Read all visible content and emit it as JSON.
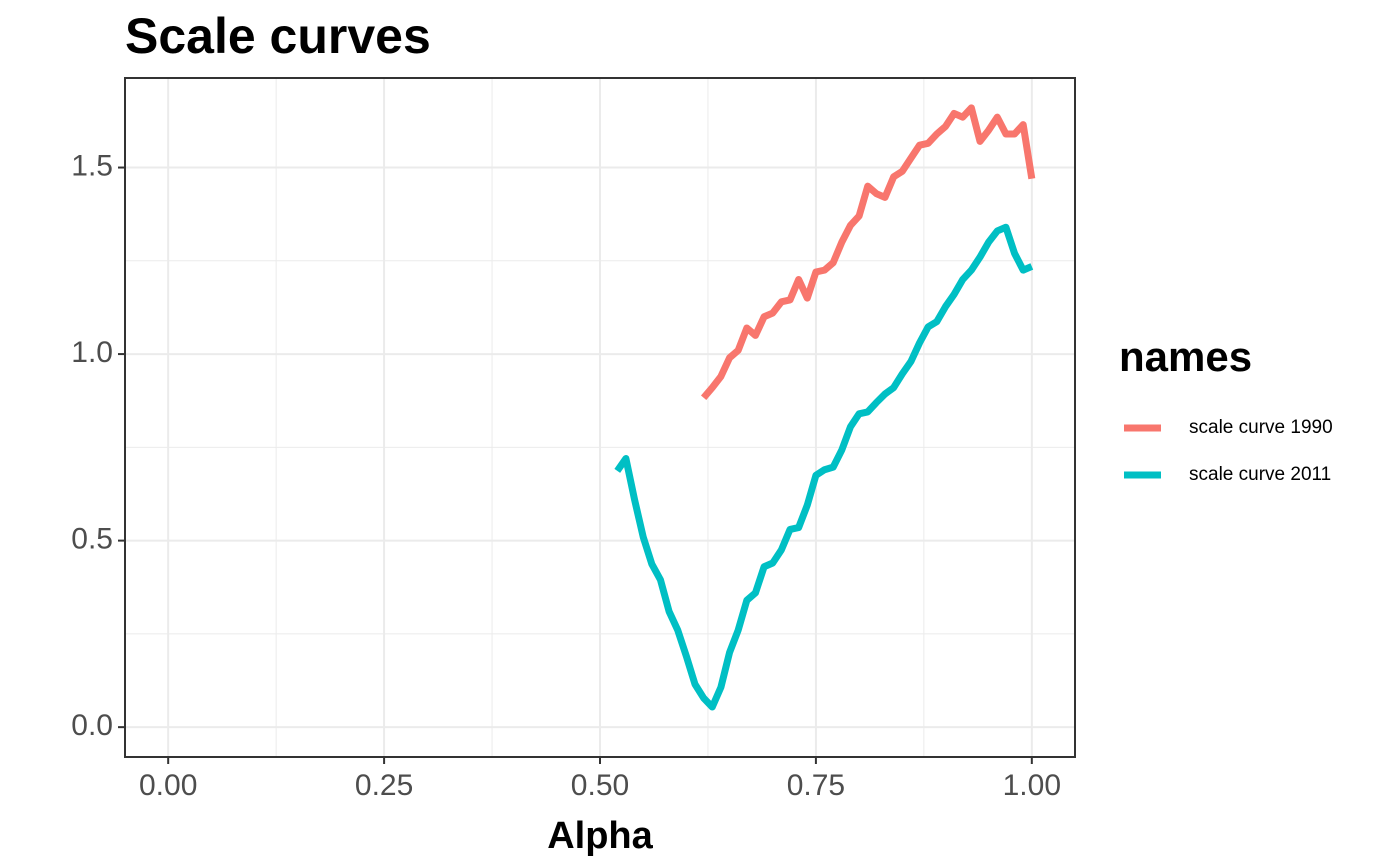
{
  "chart_data": {
    "type": "line",
    "title": "Scale curves",
    "x_label": "Alpha",
    "legend_title": "names",
    "legend_position": "right",
    "grid": true,
    "xlim": [
      -0.05,
      1.05
    ],
    "ylim": [
      -0.08,
      1.74
    ],
    "xticks": [
      {
        "value": 0,
        "label": "0.00"
      },
      {
        "value": 0.25,
        "label": "0.25"
      },
      {
        "value": 0.5,
        "label": "0.50"
      },
      {
        "value": 0.75,
        "label": "0.75"
      },
      {
        "value": 1,
        "label": "1.00"
      }
    ],
    "yticks": [
      {
        "value": 0,
        "label": "0.0"
      },
      0.5,
      {
        "value": 1,
        "label": "1.0"
      },
      1.5
    ],
    "series": [
      {
        "name": "scale curve 1990",
        "color": "#f8766d",
        "x": [
          0.62,
          0.63,
          0.64,
          0.65,
          0.66,
          0.67,
          0.68,
          0.69,
          0.7,
          0.71,
          0.72,
          0.73,
          0.74,
          0.75,
          0.76,
          0.77,
          0.78,
          0.79,
          0.8,
          0.81,
          0.82,
          0.83,
          0.84,
          0.85,
          0.86,
          0.87,
          0.88,
          0.89,
          0.9,
          0.91,
          0.92,
          0.93,
          0.94,
          0.95,
          0.96,
          0.97,
          0.98,
          0.99,
          1.0
        ],
        "values": [
          0.883,
          0.91,
          0.94,
          0.99,
          1.01,
          1.07,
          1.05,
          1.1,
          1.11,
          1.14,
          1.145,
          1.2,
          1.15,
          1.22,
          1.225,
          1.245,
          1.3,
          1.345,
          1.37,
          1.45,
          1.43,
          1.42,
          1.475,
          1.49,
          1.525,
          1.56,
          1.565,
          1.59,
          1.61,
          1.645,
          1.635,
          1.66,
          1.57,
          1.6,
          1.635,
          1.59,
          1.59,
          1.615,
          1.47
        ]
      },
      {
        "name": "scale curve 2011",
        "color": "#00bfc4",
        "x": [
          0.52,
          0.53,
          0.54,
          0.55,
          0.56,
          0.57,
          0.58,
          0.59,
          0.6,
          0.61,
          0.62,
          0.63,
          0.64,
          0.65,
          0.66,
          0.67,
          0.68,
          0.69,
          0.7,
          0.71,
          0.72,
          0.73,
          0.74,
          0.75,
          0.76,
          0.77,
          0.78,
          0.79,
          0.8,
          0.81,
          0.82,
          0.83,
          0.84,
          0.85,
          0.86,
          0.87,
          0.88,
          0.89,
          0.9,
          0.91,
          0.92,
          0.93,
          0.94,
          0.95,
          0.96,
          0.97,
          0.98,
          0.99,
          1.0
        ],
        "values": [
          0.687,
          0.72,
          0.61,
          0.51,
          0.437,
          0.395,
          0.31,
          0.26,
          0.19,
          0.115,
          0.078,
          0.054,
          0.107,
          0.2,
          0.26,
          0.34,
          0.36,
          0.43,
          0.44,
          0.475,
          0.53,
          0.535,
          0.595,
          0.675,
          0.69,
          0.697,
          0.743,
          0.805,
          0.84,
          0.845,
          0.87,
          0.893,
          0.91,
          0.947,
          0.98,
          1.03,
          1.073,
          1.087,
          1.127,
          1.16,
          1.2,
          1.225,
          1.26,
          1.3,
          1.33,
          1.34,
          1.27,
          1.225,
          1.235
        ]
      }
    ]
  }
}
